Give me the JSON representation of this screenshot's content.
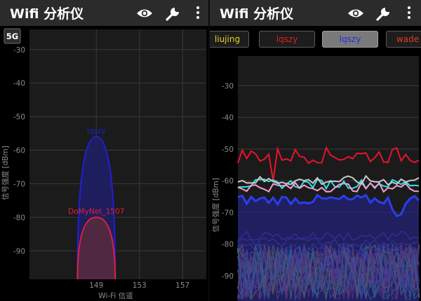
{
  "left": {
    "app_title": "Wifi 分析仪",
    "band_label": "5G",
    "y_axis_title": "信号强度 [dBm]",
    "x_axis_title": "Wi-Fi 信道",
    "y_ticks": [
      "-30",
      "-40",
      "-50",
      "-60",
      "-70",
      "-80",
      "-90"
    ],
    "x_ticks": [
      "149",
      "153",
      "157"
    ],
    "networks": [
      {
        "ssid": "lqszy",
        "color": "#1f1fd6",
        "fill": "#1e1e6a",
        "channel": 149,
        "signal_dbm": -56
      },
      {
        "ssid": "DoMyNet_1507",
        "color": "#e0203c",
        "fill": "#5a2a3c",
        "channel": 149,
        "signal_dbm": -80
      }
    ]
  },
  "right": {
    "app_title": "Wifi 分析仪",
    "y_axis_title": "信号强度 [dBm]",
    "y_ticks": [
      "-30",
      "-40",
      "-50",
      "-60",
      "-70",
      "-80",
      "-90"
    ],
    "ssid_chips": [
      {
        "label": "liujing",
        "color": "#e6d32a",
        "selected": false
      },
      {
        "label": "lqszy",
        "color": "#e02020",
        "selected": false
      },
      {
        "label": "lqszy",
        "color": "#2a2ae6",
        "selected": true
      },
      {
        "label": "wade",
        "color": "#e23a2a",
        "selected": false
      }
    ],
    "series": [
      {
        "color": "#e8132c",
        "avg_dbm": -52
      },
      {
        "color": "#2de3e8",
        "avg_dbm": -61
      },
      {
        "color": "#f4a0d0",
        "avg_dbm": -62
      },
      {
        "color": "#c9c9c9",
        "avg_dbm": -60
      },
      {
        "color": "#2a3ef0",
        "avg_dbm": -66
      }
    ]
  },
  "colors": {
    "app_bar": "#2b2b2b",
    "panel_bg": "#000000",
    "plot_bg": "#1b1b1b",
    "grid": "#3a3a3a"
  },
  "icons": [
    "eye-icon",
    "wrench-icon",
    "more-vert-icon"
  ]
}
